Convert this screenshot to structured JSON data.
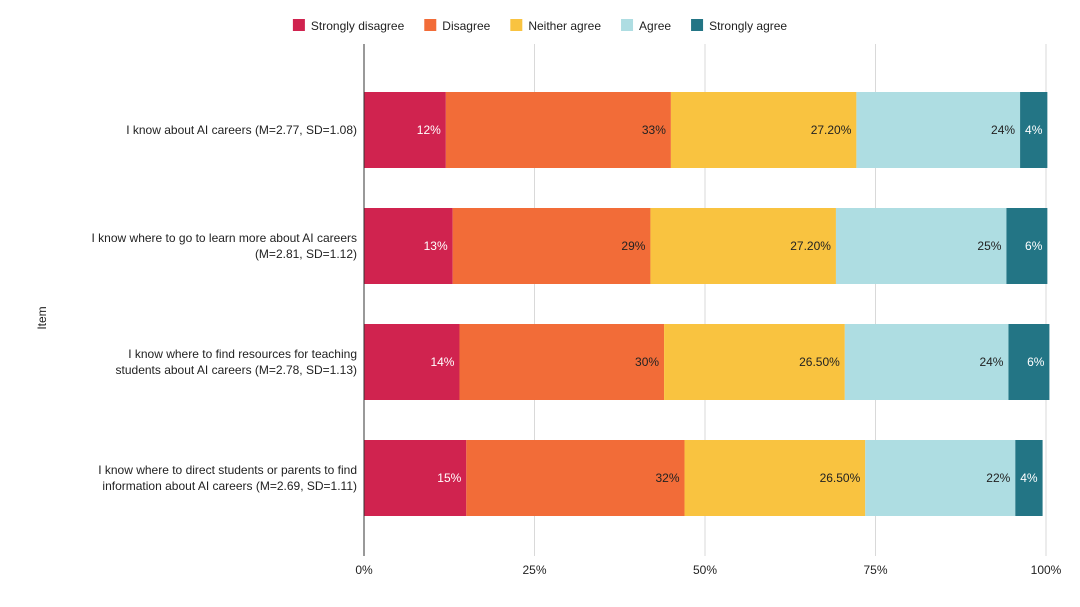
{
  "chart_data": {
    "type": "bar",
    "orientation": "horizontal",
    "stacked": true,
    "ylabel": "Item",
    "xlabel": "",
    "xlim": [
      0,
      100
    ],
    "x_ticks": [
      "0%",
      "25%",
      "50%",
      "75%",
      "100%"
    ],
    "grid": true,
    "legend_position": "top",
    "categories": [
      [
        "I know about AI careers (M=2.77, SD=1.08)"
      ],
      [
        "I know where to go to learn more about AI careers",
        "(M=2.81, SD=1.12)"
      ],
      [
        "I know where to find resources for teaching",
        "students about AI careers (M=2.78, SD=1.13)"
      ],
      [
        "I know where to direct students or parents to find",
        "information about AI careers (M=2.69, SD=1.11)"
      ]
    ],
    "series": [
      {
        "name": "Strongly disagree",
        "color": "#d0234f",
        "label_color": "#ffffff",
        "values": [
          12,
          13,
          14,
          15
        ],
        "labels": [
          "12%",
          "13%",
          "14%",
          "15%"
        ]
      },
      {
        "name": "Disagree",
        "color": "#f26c38",
        "label_color": "#222222",
        "values": [
          33,
          29,
          30,
          32
        ],
        "labels": [
          "33%",
          "29%",
          "30%",
          "32%"
        ]
      },
      {
        "name": "Neither agree",
        "color": "#f9c340",
        "label_color": "#222222",
        "values": [
          27.2,
          27.2,
          26.5,
          26.5
        ],
        "labels": [
          "27.20%",
          "27.20%",
          "26.50%",
          "26.50%"
        ]
      },
      {
        "name": "Agree",
        "color": "#aedde2",
        "label_color": "#222222",
        "values": [
          24,
          25,
          24,
          22
        ],
        "labels": [
          "24%",
          "25%",
          "24%",
          "22%"
        ]
      },
      {
        "name": "Strongly agree",
        "color": "#237585",
        "label_color": "#ffffff",
        "values": [
          4,
          6,
          6,
          4
        ],
        "labels": [
          "4%",
          "6%",
          "6%",
          "4%"
        ]
      }
    ]
  }
}
